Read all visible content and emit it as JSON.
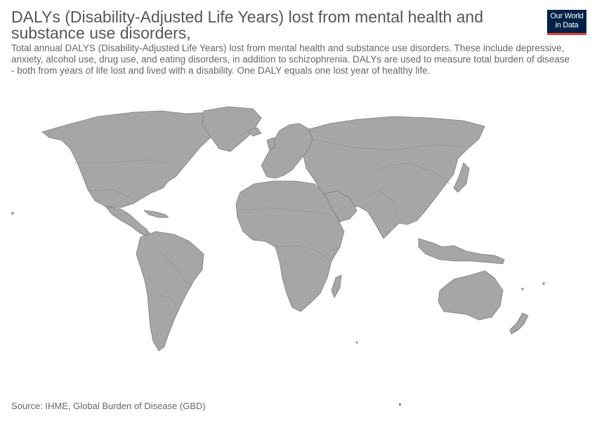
{
  "header": {
    "title": "DALYs (Disability-Adjusted Life Years) lost from mental health and substance use disorders,",
    "subtitle": "Total annual DALYS (Disability-Adjusted Life Years) lost from mental health and substance use disorders. These include depressive, anxiety, alcohol use, drug use, and eating disorders, in addition to schizophrenia. DALYs are used to measure total burden of disease - both from years of life lost and lived with a disability. One DALY equals one lost year of healthy life."
  },
  "logo": {
    "line1": "Our World",
    "line2": "in Data",
    "bg_color": "#002147",
    "accent_color": "#e5422d"
  },
  "map": {
    "fill_color": "#a6a6a6",
    "stroke_color": "#7c7c7c"
  },
  "footer": {
    "source": "Source: IHME, Global Burden of Disease (GBD)"
  }
}
